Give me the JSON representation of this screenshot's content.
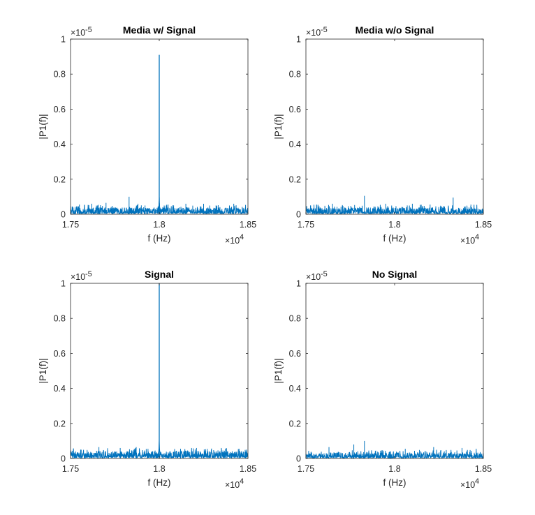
{
  "chart_data": [
    {
      "type": "line",
      "title": "Media w/ Signal",
      "xlabel": "f (Hz)",
      "ylabel": "|P1(f)|",
      "xlim": [
        17500,
        18500
      ],
      "ylim": [
        0,
        1e-05
      ],
      "x_ticks": [
        "1.75",
        "1.8",
        "1.85"
      ],
      "y_ticks": [
        "0",
        "0.2",
        "0.4",
        "0.6",
        "0.8",
        "1"
      ],
      "x_exponent": "×10",
      "x_exponent_power": "4",
      "y_exponent": "×10",
      "y_exponent_power": "-5",
      "line_color": "#0072BD",
      "grid": false,
      "noise_floor": 2.2e-07,
      "spikes": [
        {
          "x": 17830,
          "y": 1e-06
        },
        {
          "x": 17550,
          "y": 5.5e-07
        },
        {
          "x": 17620,
          "y": 6e-07
        },
        {
          "x": 17700,
          "y": 6.5e-07
        },
        {
          "x": 17880,
          "y": 6e-07
        },
        {
          "x": 17920,
          "y": 5e-07
        },
        {
          "x": 18050,
          "y": 5.5e-07
        },
        {
          "x": 18150,
          "y": 6e-07
        },
        {
          "x": 18250,
          "y": 6e-07
        },
        {
          "x": 18320,
          "y": 5e-07
        },
        {
          "x": 18420,
          "y": 6e-07
        }
      ],
      "peak": {
        "x": 18000,
        "y": 9.1e-06
      }
    },
    {
      "type": "line",
      "title": "Media w/o Signal",
      "xlabel": "f (Hz)",
      "ylabel": "|P1(f)|",
      "xlim": [
        17500,
        18500
      ],
      "ylim": [
        0,
        1e-05
      ],
      "x_ticks": [
        "1.75",
        "1.8",
        "1.85"
      ],
      "y_ticks": [
        "0",
        "0.2",
        "0.4",
        "0.6",
        "0.8",
        "1"
      ],
      "x_exponent": "×10",
      "x_exponent_power": "4",
      "y_exponent": "×10",
      "y_exponent_power": "-5",
      "line_color": "#0072BD",
      "grid": false,
      "noise_floor": 2.2e-07,
      "spikes": [
        {
          "x": 17830,
          "y": 1.05e-06
        },
        {
          "x": 18330,
          "y": 9.5e-07
        },
        {
          "x": 17560,
          "y": 5.5e-07
        },
        {
          "x": 17650,
          "y": 6e-07
        },
        {
          "x": 17950,
          "y": 6e-07
        },
        {
          "x": 18100,
          "y": 6e-07
        },
        {
          "x": 18200,
          "y": 5.5e-07
        },
        {
          "x": 18430,
          "y": 5.5e-07
        }
      ],
      "peak": null
    },
    {
      "type": "line",
      "title": "Signal",
      "xlabel": "f (Hz)",
      "ylabel": "|P1(f)|",
      "xlim": [
        17500,
        18500
      ],
      "ylim": [
        0,
        1e-05
      ],
      "x_ticks": [
        "1.75",
        "1.8",
        "1.85"
      ],
      "y_ticks": [
        "0",
        "0.2",
        "0.4",
        "0.6",
        "0.8",
        "1"
      ],
      "x_exponent": "×10",
      "x_exponent_power": "4",
      "y_exponent": "×10",
      "y_exponent_power": "-5",
      "line_color": "#0072BD",
      "grid": false,
      "noise_floor": 2.4e-07,
      "spikes": [
        {
          "x": 17660,
          "y": 6.5e-07
        },
        {
          "x": 17780,
          "y": 6e-07
        },
        {
          "x": 17870,
          "y": 6.5e-07
        },
        {
          "x": 17560,
          "y": 5e-07
        },
        {
          "x": 18120,
          "y": 5.5e-07
        },
        {
          "x": 18210,
          "y": 6e-07
        },
        {
          "x": 18350,
          "y": 6e-07
        },
        {
          "x": 18450,
          "y": 5.5e-07
        }
      ],
      "peak": {
        "x": 18000,
        "y": 1e-05
      }
    },
    {
      "type": "line",
      "title": "No Signal",
      "xlabel": "f (Hz)",
      "ylabel": "|P1(f)|",
      "xlim": [
        17500,
        18500
      ],
      "ylim": [
        0,
        1e-05
      ],
      "x_ticks": [
        "1.75",
        "1.8",
        "1.85"
      ],
      "y_ticks": [
        "0",
        "0.2",
        "0.4",
        "0.6",
        "0.8",
        "1"
      ],
      "x_exponent": "×10",
      "x_exponent_power": "4",
      "y_exponent": "×10",
      "y_exponent_power": "-5",
      "line_color": "#0072BD",
      "grid": false,
      "noise_floor": 2e-07,
      "spikes": [
        {
          "x": 17830,
          "y": 1e-06
        },
        {
          "x": 17770,
          "y": 8e-07
        },
        {
          "x": 17630,
          "y": 6.5e-07
        },
        {
          "x": 18220,
          "y": 6.5e-07
        },
        {
          "x": 18060,
          "y": 5.5e-07
        },
        {
          "x": 18380,
          "y": 6e-07
        },
        {
          "x": 18460,
          "y": 5.5e-07
        }
      ],
      "peak": null
    }
  ]
}
